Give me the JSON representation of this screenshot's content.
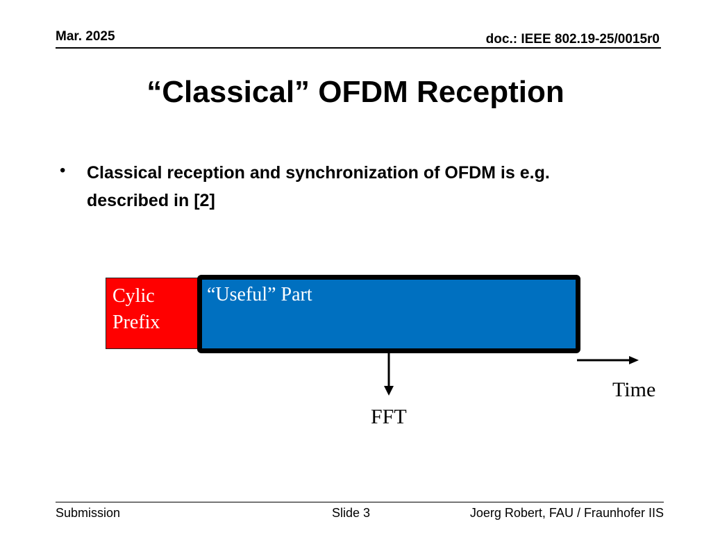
{
  "header": {
    "date": "Mar. 2025",
    "doc_id": "doc.: IEEE 802.19-25/0015r0"
  },
  "slide": {
    "title": "“Classical” OFDM Reception",
    "bullets": [
      {
        "symbol": "•",
        "text": "Classical reception and synchronization of OFDM is e.g. described in [2]"
      }
    ]
  },
  "diagram": {
    "cyclic_prefix_label": "Cylic Prefix",
    "useful_part_label": "“Useful” Part",
    "fft_label": "FFT",
    "time_label": "Time",
    "colors": {
      "cyclic_prefix": "#ff0000",
      "useful_part": "#0070c0",
      "outline": "#000000"
    }
  },
  "footer": {
    "left": "Submission",
    "center": "Slide 3",
    "right": "Joerg Robert, FAU / Fraunhofer IIS"
  }
}
